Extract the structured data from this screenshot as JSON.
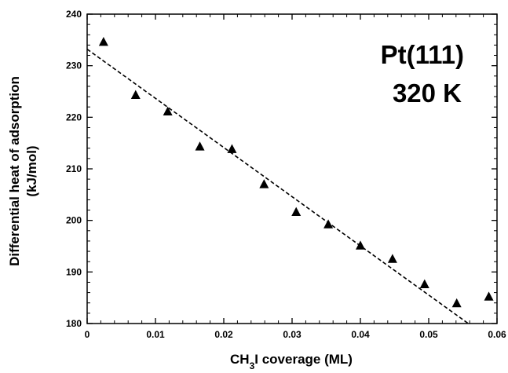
{
  "chart_data": {
    "type": "scatter",
    "xlabel": "CH3I coverage (ML)",
    "xlabel_parts": {
      "main": "CH",
      "sub": "3",
      "rest": "I coverage (ML)"
    },
    "ylabel_line1": "Differential heat of adsorption",
    "ylabel_line2": "(kJ/mol)",
    "xlim": [
      0,
      0.06
    ],
    "ylim": [
      180,
      240
    ],
    "x_ticks": [
      0,
      0.01,
      0.02,
      0.03,
      0.04,
      0.05,
      0.06
    ],
    "x_tick_labels": [
      "0",
      "0.01",
      "0.02",
      "0.03",
      "0.04",
      "0.05",
      "0.06"
    ],
    "y_ticks": [
      180,
      190,
      200,
      210,
      220,
      230,
      240
    ],
    "y_tick_labels": [
      "180",
      "190",
      "200",
      "210",
      "220",
      "230",
      "240"
    ],
    "grid": false,
    "annotations": [
      "Pt(111)",
      "320 K"
    ],
    "series": [
      {
        "marker": "triangle",
        "x": [
          0.0024,
          0.0071,
          0.0118,
          0.0165,
          0.0212,
          0.0259,
          0.0306,
          0.0353,
          0.04,
          0.0447,
          0.0494,
          0.0541,
          0.0588
        ],
        "y": [
          234.6,
          224.3,
          221.1,
          214.3,
          213.8,
          207.0,
          201.6,
          199.2,
          195.1,
          192.5,
          187.6,
          183.9,
          185.2
        ]
      }
    ],
    "trendline": {
      "style": "dashed",
      "x": [
        0,
        0.0558
      ],
      "y": [
        233.2,
        180
      ]
    },
    "colors": {
      "marker": "#000000",
      "line": "#000000",
      "axes": "#000000"
    }
  }
}
